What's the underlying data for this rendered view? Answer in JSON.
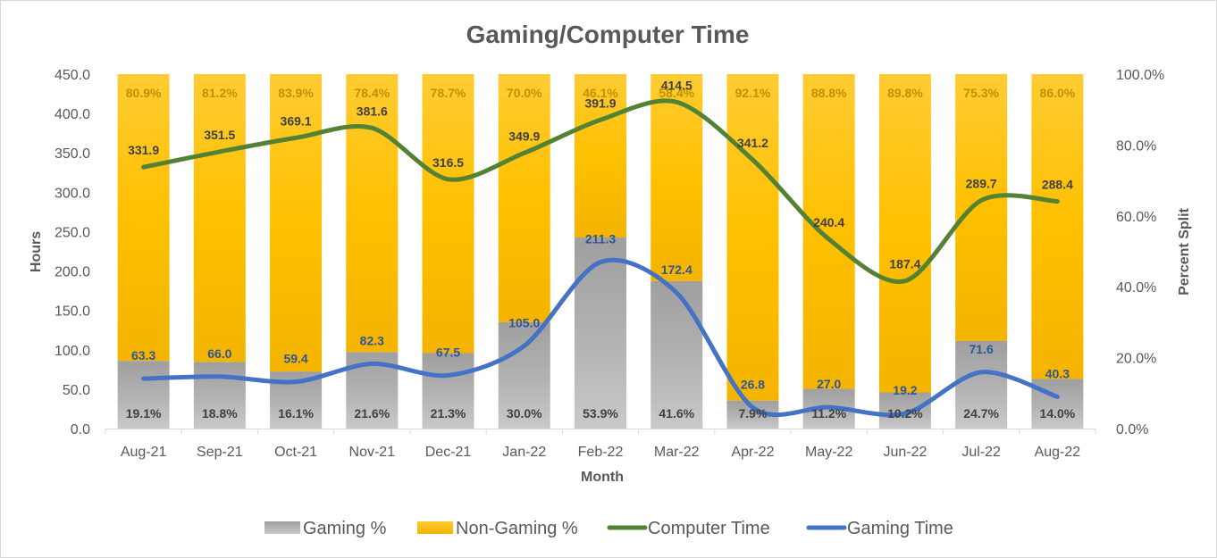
{
  "chart_data": {
    "type": "bar",
    "title": "Gaming/Computer Time",
    "xlabel": "Month",
    "ylabel": "Hours",
    "y2label": "Percent Split",
    "categories": [
      "Aug-21",
      "Sep-21",
      "Oct-21",
      "Nov-21",
      "Dec-21",
      "Jan-22",
      "Feb-22",
      "Mar-22",
      "Apr-22",
      "May-22",
      "Jun-22",
      "Jul-22",
      "Aug-22"
    ],
    "ylim": [
      0,
      450
    ],
    "y_ticks": [
      "0.0",
      "50.0",
      "100.0",
      "150.0",
      "200.0",
      "250.0",
      "300.0",
      "350.0",
      "400.0",
      "450.0"
    ],
    "y2lim": [
      0,
      1
    ],
    "y2_ticks": [
      "0.0%",
      "20.0%",
      "40.0%",
      "60.0%",
      "80.0%",
      "100.0%"
    ],
    "grid": false,
    "legend_position": "bottom",
    "series": [
      {
        "name": "Gaming %",
        "type": "stacked-bar",
        "axis": "secondary",
        "color": "#a6a6a6",
        "values": [
          0.191,
          0.188,
          0.161,
          0.216,
          0.213,
          0.3,
          0.539,
          0.416,
          0.079,
          0.112,
          0.102,
          0.247,
          0.14
        ],
        "labels": [
          "19.1%",
          "18.8%",
          "16.1%",
          "21.6%",
          "21.3%",
          "30.0%",
          "53.9%",
          "41.6%",
          "7.9%",
          "11.2%",
          "10.2%",
          "24.7%",
          "14.0%"
        ]
      },
      {
        "name": "Non-Gaming %",
        "type": "stacked-bar",
        "axis": "secondary",
        "color": "#ffc000",
        "values": [
          0.809,
          0.812,
          0.839,
          0.784,
          0.787,
          0.7,
          0.461,
          0.584,
          0.921,
          0.888,
          0.898,
          0.753,
          0.86
        ],
        "labels": [
          "80.9%",
          "81.2%",
          "83.9%",
          "78.4%",
          "78.7%",
          "70.0%",
          "46.1%",
          "58.4%",
          "92.1%",
          "88.8%",
          "89.8%",
          "75.3%",
          "86.0%"
        ]
      },
      {
        "name": "Computer Time",
        "type": "line",
        "axis": "primary",
        "color": "#548235",
        "values": [
          331.9,
          351.5,
          369.1,
          381.6,
          316.5,
          349.9,
          391.9,
          414.5,
          341.2,
          240.4,
          187.4,
          289.7,
          288.4
        ],
        "labels": [
          "331.9",
          "351.5",
          "369.1",
          "381.6",
          "316.5",
          "349.9",
          "391.9",
          "414.5",
          "341.2",
          "240.4",
          "187.4",
          "289.7",
          "288.4"
        ]
      },
      {
        "name": "Gaming Time",
        "type": "line",
        "axis": "primary",
        "color": "#4472c4",
        "values": [
          63.3,
          66.0,
          59.4,
          82.3,
          67.5,
          105.0,
          211.3,
          172.4,
          26.8,
          27.0,
          19.2,
          71.6,
          40.3
        ],
        "labels": [
          "63.3",
          "66.0",
          "59.4",
          "82.3",
          "67.5",
          "105.0",
          "211.3",
          "172.4",
          "26.8",
          "27.0",
          "19.2",
          "71.6",
          "40.3"
        ]
      }
    ]
  }
}
